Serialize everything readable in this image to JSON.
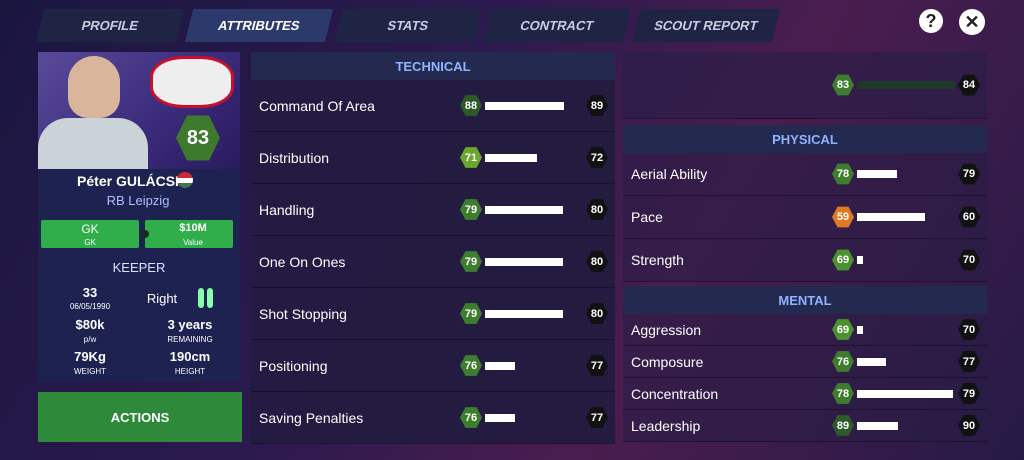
{
  "tabs": [
    "PROFILE",
    "ATTRIBUTES",
    "STATS",
    "CONTRACT",
    "SCOUT REPORT"
  ],
  "active_tab": 1,
  "player": {
    "name": "Péter GULÁCSI",
    "club": "RB Leipzig",
    "rating": 83,
    "position": "GK",
    "position_sub": "GK",
    "value": "$10M",
    "value_label": "Value",
    "role": "KEEPER",
    "age": 33,
    "dob": "06/05/1990",
    "foot": "Right",
    "wage": "$80k",
    "wage_label": "p/w",
    "contract": "3 years",
    "contract_label": "REMAINING",
    "weight": "79Kg",
    "weight_label": "WEIGHT",
    "height": "190cm",
    "height_label": "HEIGHT"
  },
  "actions": "ACTIONS",
  "overall": {
    "current": 83,
    "progress": 0,
    "potential": 84
  },
  "technical": {
    "title": "TECHNICAL",
    "rows": [
      {
        "name": "Command Of Area",
        "current": 88,
        "progress": 81,
        "potential": 89,
        "color": "#2e5a2a"
      },
      {
        "name": "Distribution",
        "current": 71,
        "progress": 53,
        "potential": 72,
        "color": "#6aa52c"
      },
      {
        "name": "Handling",
        "current": 79,
        "progress": 80,
        "potential": 80,
        "color": "#3f7d2e"
      },
      {
        "name": "One On Ones",
        "current": 79,
        "progress": 80,
        "potential": 80,
        "color": "#3f7d2e"
      },
      {
        "name": "Shot Stopping",
        "current": 79,
        "progress": 80,
        "potential": 80,
        "color": "#3f7d2e"
      },
      {
        "name": "Positioning",
        "current": 76,
        "progress": 31,
        "potential": 77,
        "color": "#3f7d2e"
      },
      {
        "name": "Saving Penalties",
        "current": 76,
        "progress": 31,
        "potential": 77,
        "color": "#3f7d2e"
      }
    ]
  },
  "physical": {
    "title": "PHYSICAL",
    "rows": [
      {
        "name": "Aerial Ability",
        "current": 78,
        "progress": 41,
        "potential": 79,
        "color": "#3f7d2e"
      },
      {
        "name": "Pace",
        "current": 59,
        "progress": 69,
        "potential": 60,
        "color": "#e07a22"
      },
      {
        "name": "Strength",
        "current": 69,
        "progress": 6,
        "potential": 70,
        "color": "#4c9130"
      }
    ]
  },
  "mental": {
    "title": "MENTAL",
    "rows": [
      {
        "name": "Aggression",
        "current": 69,
        "progress": 6,
        "potential": 70,
        "color": "#4c9130"
      },
      {
        "name": "Composure",
        "current": 76,
        "progress": 30,
        "potential": 77,
        "color": "#3f7d2e"
      },
      {
        "name": "Concentration",
        "current": 78,
        "progress": 98,
        "potential": 79,
        "color": "#3f7d2e"
      },
      {
        "name": "Leadership",
        "current": 89,
        "progress": 42,
        "potential": 90,
        "color": "#2e5a2a"
      }
    ]
  }
}
